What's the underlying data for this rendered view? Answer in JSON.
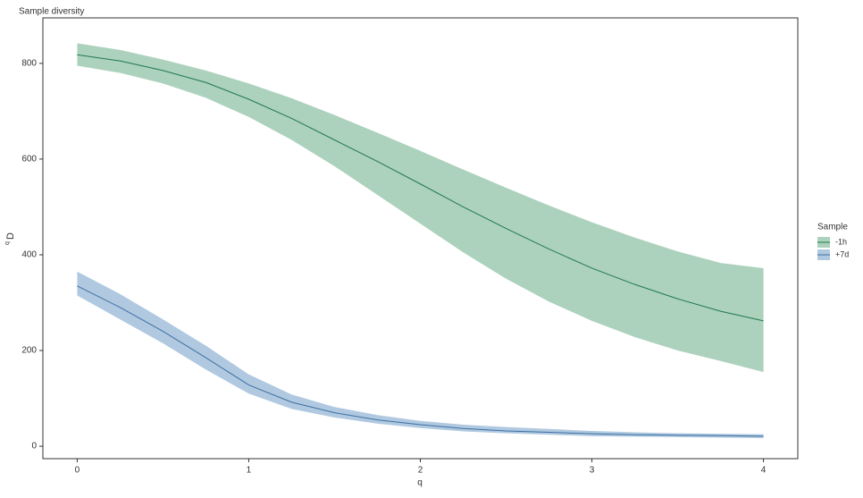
{
  "chart_data": {
    "type": "line",
    "title": "Sample diversity",
    "x_label": "q",
    "y_label": "D",
    "y_label_sup": "q",
    "legend_title": "Sample",
    "legend_position": "right",
    "x": [
      0,
      0.25,
      0.5,
      0.75,
      1,
      1.25,
      1.5,
      1.75,
      2,
      2.25,
      2.5,
      2.75,
      3,
      3.25,
      3.5,
      3.75,
      4
    ],
    "series": [
      {
        "name": "-1h",
        "color": "#1f7a4d",
        "band_color": "#acd1bc",
        "values": [
          818,
          805,
          785,
          760,
          725,
          685,
          640,
          595,
          548,
          500,
          455,
          412,
          372,
          338,
          308,
          282,
          262
        ],
        "lower": [
          795,
          780,
          758,
          728,
          688,
          640,
          585,
          525,
          465,
          405,
          350,
          302,
          262,
          228,
          200,
          178,
          155
        ],
        "upper": [
          842,
          828,
          808,
          785,
          758,
          727,
          692,
          655,
          617,
          578,
          540,
          503,
          468,
          436,
          407,
          383,
          372
        ]
      },
      {
        "name": "+7d",
        "color": "#3d6fa3",
        "band_color": "#b0c9e0",
        "values": [
          335,
          290,
          240,
          185,
          128,
          92,
          70,
          55,
          45,
          37,
          32,
          29,
          26,
          24,
          23,
          22,
          21
        ],
        "lower": [
          315,
          265,
          215,
          160,
          110,
          78,
          60,
          47,
          38,
          31,
          27,
          24,
          21,
          20,
          19,
          18,
          17
        ],
        "upper": [
          365,
          318,
          265,
          210,
          150,
          108,
          82,
          65,
          53,
          45,
          40,
          36,
          32,
          29,
          27,
          26,
          25
        ]
      }
    ],
    "xlim": [
      -0.2,
      4.2
    ],
    "xticks": [
      0,
      1,
      2,
      3,
      4
    ],
    "ylim": [
      -26,
      895
    ],
    "yticks": [
      0,
      200,
      400,
      600,
      800
    ],
    "grid": false
  }
}
